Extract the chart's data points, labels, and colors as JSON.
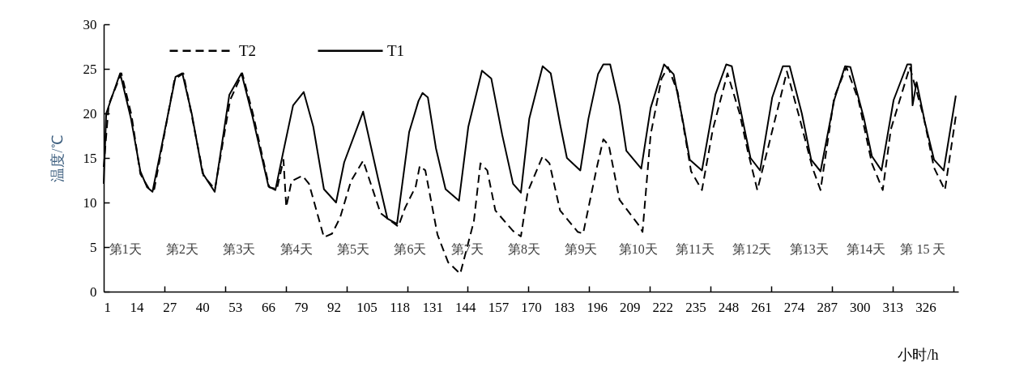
{
  "chart_data": {
    "type": "line",
    "ylabel": "温度/℃",
    "xlabel": "小时/h",
    "legend": "top",
    "grid": false,
    "xlim": [
      1,
      339
    ],
    "ylim": [
      0,
      30
    ],
    "yticks": [
      0,
      5,
      10,
      15,
      20,
      25,
      30
    ],
    "xticks": [
      1,
      14,
      27,
      40,
      53,
      66,
      79,
      92,
      105,
      118,
      131,
      144,
      157,
      170,
      183,
      196,
      209,
      222,
      235,
      248,
      261,
      274,
      287,
      300,
      313,
      326,
      {
        "value": 25,
        "label": null
      },
      {
        "value": 49,
        "label": null
      },
      {
        "value": 73,
        "label": null
      },
      {
        "value": 97,
        "label": null
      },
      {
        "value": 121,
        "label": null
      },
      {
        "value": 145,
        "label": null
      },
      {
        "value": 169,
        "label": null
      },
      {
        "value": 193,
        "label": null
      },
      {
        "value": 217,
        "label": null
      },
      {
        "value": 241,
        "label": null
      },
      {
        "value": 265,
        "label": null
      },
      {
        "value": 289,
        "label": null
      },
      {
        "value": 313,
        "label": null
      },
      {
        "value": 337,
        "label": null
      }
    ],
    "series": [
      {
        "name": "T2",
        "color": "#000000",
        "line_style": "dashed",
        "x": [
          1,
          3,
          8,
          12,
          15.5,
          19,
          21,
          29,
          32.5,
          36,
          40.5,
          45,
          51,
          55.8,
          60,
          66.5,
          69.5,
          72.1,
          73.2,
          75.3,
          79.6,
          82.2,
          88.1,
          91.3,
          94.5,
          98.8,
          103.6,
          110.5,
          117.5,
          120.2,
          124.4,
          126,
          128.2,
          133,
          137.2,
          142,
          147.4,
          150,
          152.7,
          155.9,
          162.9,
          166,
          168.7,
          174.6,
          177.3,
          181.5,
          188.5,
          190.6,
          196,
          198.6,
          200.8,
          205,
          213,
          214.1,
          217.3,
          221.6,
          224.2,
          228,
          233.3,
          237.6,
          241.9,
          247.7,
          252.5,
          255.7,
          259.5,
          263.7,
          271.2,
          276,
          281.3,
          284.5,
          289.9,
          294.7,
          299.5,
          304.8,
          309.1,
          312.3,
          319.8,
          325.2,
          329.4,
          333.7,
          338
        ],
        "values": [
          14,
          21,
          24.5,
          19.8,
          13.2,
          11.5,
          11.5,
          23.8,
          24.5,
          19.5,
          13,
          11.5,
          21.5,
          24.5,
          20,
          11.7,
          11.5,
          14.8,
          9.5,
          12.4,
          13,
          12.1,
          6.1,
          6.5,
          8.3,
          12.4,
          14.7,
          8.8,
          7.3,
          9.4,
          11.8,
          14.1,
          13.6,
          6.4,
          3.3,
          2,
          7.9,
          14.4,
          13.6,
          9.1,
          6.8,
          6.2,
          11.2,
          15.2,
          14.4,
          9.1,
          6.7,
          6.5,
          13.9,
          17.1,
          16.4,
          10.3,
          7.3,
          6.7,
          17.6,
          23.9,
          25.2,
          22.4,
          13.5,
          11.4,
          18.2,
          24.5,
          20,
          15.8,
          11.4,
          16.1,
          24.7,
          19.7,
          13.9,
          11.4,
          21.8,
          25.2,
          21.5,
          14.4,
          11.4,
          18.2,
          25.2,
          19.7,
          13.9,
          11.4,
          19.7
        ]
      },
      {
        "name": "T1",
        "color": "#000000",
        "line_style": "solid",
        "x": [
          1,
          2,
          7.5,
          11.8,
          15.5,
          18.2,
          20.3,
          29.4,
          32.1,
          35.8,
          40.1,
          44.9,
          50.7,
          55.5,
          59.8,
          66.2,
          68.9,
          72.1,
          75.9,
          80.1,
          83.9,
          88.1,
          92.9,
          96.1,
          103.6,
          109.5,
          113.2,
          117,
          121.8,
          125.5,
          127.1,
          129.2,
          132.4,
          136.2,
          141.5,
          145.2,
          150.6,
          154.3,
          158.6,
          162.9,
          166,
          169.3,
          174.6,
          177.8,
          181.5,
          184.2,
          189.5,
          192.7,
          196.5,
          198.6,
          201.3,
          205,
          207.7,
          213.6,
          217.3,
          222.6,
          226.4,
          230.1,
          232.8,
          237.6,
          242.9,
          247.2,
          249.4,
          253.6,
          256.8,
          260.6,
          265.4,
          269.6,
          272.3,
          277.1,
          280.8,
          284.5,
          289.9,
          294.2,
          296.3,
          301.7,
          304.8,
          308.6,
          313.4,
          318.8,
          320.3,
          320.9,
          322.5,
          325.7,
          329.4,
          333.2,
          338
        ],
        "values": [
          12.1,
          20,
          24.5,
          19.4,
          13.5,
          11.7,
          11.2,
          24.1,
          24.5,
          20,
          13.3,
          11.2,
          22.1,
          24.5,
          19.7,
          11.8,
          11.4,
          15.8,
          20.9,
          22.4,
          18.5,
          11.5,
          10,
          14.5,
          20.2,
          12.7,
          8.2,
          7.6,
          17.9,
          21.4,
          22.3,
          21.8,
          16.1,
          11.5,
          10.2,
          18.5,
          24.8,
          23.9,
          17.6,
          12.1,
          11.1,
          19.4,
          25.3,
          24.5,
          18.8,
          15,
          13.6,
          19.4,
          24.4,
          25.5,
          25.5,
          20.9,
          15.8,
          13.8,
          20.6,
          25.5,
          24.4,
          19.1,
          14.8,
          13.6,
          22.1,
          25.5,
          25.3,
          19.4,
          15,
          13.6,
          21.8,
          25.3,
          25.3,
          20,
          14.8,
          13.5,
          21.5,
          25.3,
          25.2,
          19.4,
          15.2,
          13.6,
          21.5,
          25.5,
          25.5,
          20.9,
          23.5,
          19.1,
          14.8,
          13.6,
          22
        ]
      }
    ],
    "annotations": [
      "第1天",
      "第2天",
      "第3天",
      "第4天",
      "第5天",
      "第6天",
      "第7天",
      "第8天",
      "第9天",
      "第10天",
      "第11天",
      "第12天",
      "第13天",
      "第14天",
      "第 15 天"
    ]
  }
}
